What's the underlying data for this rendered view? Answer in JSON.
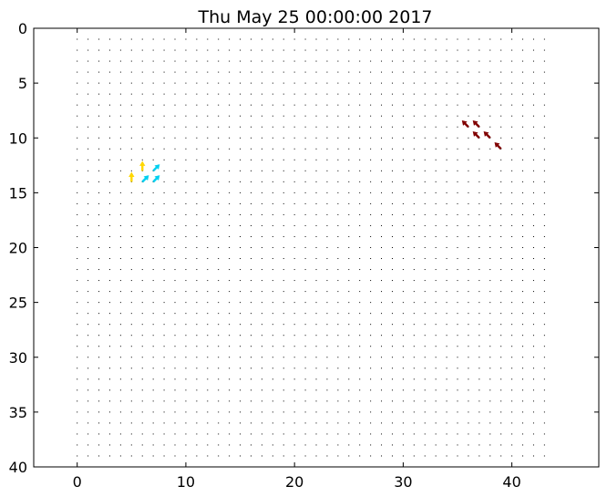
{
  "chart_data": {
    "type": "quiver",
    "title": "Thu May 25 00:00:00 2017",
    "xlabel": "",
    "ylabel": "",
    "xlim": [
      -4,
      48
    ],
    "ylim": [
      40,
      0
    ],
    "y_inverted": true,
    "grid": false,
    "x_ticks": [
      0,
      10,
      20,
      30,
      40
    ],
    "y_ticks": [
      0,
      5,
      10,
      15,
      20,
      25,
      30,
      35,
      40
    ],
    "x_tick_labels": [
      "0",
      "10",
      "20",
      "30",
      "40"
    ],
    "y_tick_labels": [
      "0",
      "5",
      "10",
      "15",
      "20",
      "25",
      "30",
      "35",
      "40"
    ],
    "grid_points": {
      "x_range": [
        0,
        43
      ],
      "y_range": [
        1,
        39
      ],
      "step": 1
    },
    "vectors": [
      {
        "x": 36,
        "y": 9,
        "u": -0.6,
        "v": -0.6,
        "color": "#800000"
      },
      {
        "x": 37,
        "y": 9,
        "u": -0.6,
        "v": -0.6,
        "color": "#800000"
      },
      {
        "x": 37,
        "y": 10,
        "u": -0.6,
        "v": -0.6,
        "color": "#800000"
      },
      {
        "x": 38,
        "y": 10,
        "u": -0.6,
        "v": -0.6,
        "color": "#800000"
      },
      {
        "x": 39,
        "y": 11,
        "u": -0.6,
        "v": -0.6,
        "color": "#800000"
      },
      {
        "x": 6,
        "y": 13,
        "u": 0.0,
        "v": -0.9,
        "color": "#ffd700"
      },
      {
        "x": 7,
        "y": 13,
        "u": 0.6,
        "v": -0.6,
        "color": "#00d0f0"
      },
      {
        "x": 5,
        "y": 14,
        "u": 0.0,
        "v": -0.9,
        "color": "#ffd700"
      },
      {
        "x": 6,
        "y": 14,
        "u": 0.6,
        "v": -0.6,
        "color": "#00d0f0"
      },
      {
        "x": 7,
        "y": 14,
        "u": 0.6,
        "v": -0.6,
        "color": "#00d0f0"
      }
    ],
    "colors": {
      "frame": "#000000",
      "dot": "#000000"
    }
  }
}
